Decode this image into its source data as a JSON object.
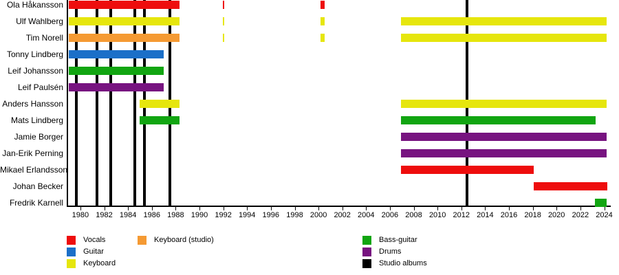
{
  "chart_data": {
    "type": "timeline",
    "x_axis": {
      "min": 1978.85,
      "max": 2024.55,
      "ticks": [
        1980,
        1982,
        1984,
        1986,
        1988,
        1990,
        1992,
        1994,
        1996,
        1998,
        2000,
        2002,
        2004,
        2006,
        2008,
        2010,
        2012,
        2014,
        2016,
        2018,
        2020,
        2022,
        2024
      ]
    },
    "roles": {
      "vocals": {
        "label": "Vocals",
        "color": "#ee0d0d"
      },
      "guitar": {
        "label": "Guitar",
        "color": "#1b6fc8"
      },
      "keyboard": {
        "label": "Keyboard",
        "color": "#e6e60d"
      },
      "keyboard_studio": {
        "label": "Keyboard (studio)",
        "color": "#f59a33"
      },
      "bass": {
        "label": "Bass-guitar",
        "color": "#11a511"
      },
      "drums": {
        "label": "Drums",
        "color": "#771380"
      },
      "albums": {
        "label": "Studio albums",
        "color": "#000000"
      }
    },
    "members": [
      {
        "name": "Ola Håkansson",
        "bars": [
          {
            "role": "vocals",
            "start": 1979.0,
            "end": 1988.35
          },
          {
            "role": "vocals",
            "start": 1991.95,
            "end": 1992.1
          },
          {
            "role": "vocals",
            "start": 2000.15,
            "end": 2000.5
          }
        ]
      },
      {
        "name": "Ulf Wahlberg",
        "bars": [
          {
            "role": "keyboard",
            "start": 1979.0,
            "end": 1988.35
          },
          {
            "role": "keyboard",
            "start": 1991.95,
            "end": 1992.1
          },
          {
            "role": "keyboard",
            "start": 2000.15,
            "end": 2000.5
          },
          {
            "role": "keyboard",
            "start": 2006.9,
            "end": 2024.2
          }
        ]
      },
      {
        "name": "Tim Norell",
        "bars": [
          {
            "role": "keyboard_studio",
            "start": 1979.0,
            "end": 1988.35
          },
          {
            "role": "keyboard",
            "start": 1991.95,
            "end": 1992.1
          },
          {
            "role": "keyboard",
            "start": 2000.15,
            "end": 2000.5
          },
          {
            "role": "keyboard",
            "start": 2006.9,
            "end": 2024.2
          }
        ]
      },
      {
        "name": "Tonny Lindberg",
        "bars": [
          {
            "role": "guitar",
            "start": 1979.0,
            "end": 1987.0
          }
        ]
      },
      {
        "name": "Leif Johansson",
        "bars": [
          {
            "role": "bass",
            "start": 1979.0,
            "end": 1987.0
          }
        ]
      },
      {
        "name": "Leif Paulsén",
        "bars": [
          {
            "role": "drums",
            "start": 1979.0,
            "end": 1987.0
          }
        ]
      },
      {
        "name": "Anders Hansson",
        "bars": [
          {
            "role": "keyboard",
            "start": 1985.0,
            "end": 1988.35
          },
          {
            "role": "keyboard",
            "start": 2006.9,
            "end": 2024.2
          }
        ]
      },
      {
        "name": "Mats Lindberg",
        "bars": [
          {
            "role": "bass",
            "start": 1985.0,
            "end": 1988.35
          },
          {
            "role": "bass",
            "start": 2006.9,
            "end": 2023.25
          }
        ]
      },
      {
        "name": "Jamie Borger",
        "bars": [
          {
            "role": "drums",
            "start": 2006.9,
            "end": 2024.2
          }
        ]
      },
      {
        "name": "Jan-Erik Perning",
        "bars": [
          {
            "role": "drums",
            "start": 2006.9,
            "end": 2024.2
          }
        ]
      },
      {
        "name": "Mikael Erlandsson",
        "bars": [
          {
            "role": "vocals",
            "start": 2006.9,
            "end": 2018.05
          }
        ]
      },
      {
        "name": "Johan Becker",
        "bars": [
          {
            "role": "vocals",
            "start": 2018.05,
            "end": 2024.25
          }
        ]
      },
      {
        "name": "Fredrik Karnell",
        "bars": [
          {
            "role": "bass",
            "start": 2023.2,
            "end": 2024.2
          }
        ]
      }
    ],
    "album_lines": [
      1979.65,
      1981.4,
      1982.55,
      1984.55,
      1985.4,
      1987.5,
      2012.45
    ],
    "legend": {
      "columns": [
        {
          "items": [
            "vocals",
            "guitar",
            "keyboard"
          ]
        },
        {
          "items": [
            "keyboard_studio"
          ]
        },
        {
          "items": [
            "bass",
            "drums",
            "albums"
          ]
        }
      ]
    }
  }
}
